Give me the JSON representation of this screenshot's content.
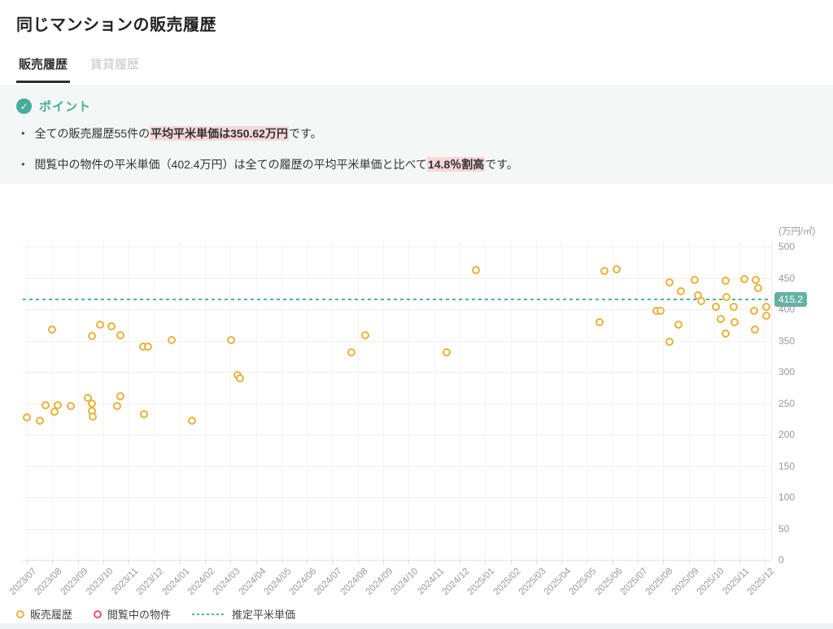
{
  "page": {
    "title": "同じマンションの販売履歴"
  },
  "tabs": [
    {
      "label": "販売履歴",
      "active": true
    },
    {
      "label": "賃貸履歴",
      "active": false
    }
  ],
  "point_section": {
    "heading": "ポイント",
    "check_icon": "check-circle",
    "bullets": [
      {
        "pre": "全ての販売履歴55件の",
        "highlight": "平均平米単価は350.62万円",
        "post": "です。"
      },
      {
        "pre": "閲覧中の物件の平米単価（402.4万円）は全ての履歴の平均平米単価と比べて",
        "highlight": "14.8％割高",
        "post": "です。"
      }
    ]
  },
  "chart_data": {
    "type": "scatter",
    "title": "",
    "unit_label": "(万円/㎡)",
    "ylim": [
      0,
      500
    ],
    "y_ticks": [
      500,
      450,
      400,
      350,
      300,
      250,
      200,
      150,
      100,
      50,
      0
    ],
    "grid": true,
    "legend_position": "bottom-left",
    "x_labels": [
      "2023/07",
      "2023/08",
      "2023/09",
      "2023/10",
      "2023/11",
      "2023/12",
      "2024/01",
      "2024/02",
      "2024/03",
      "2024/04",
      "2024/05",
      "2024/06",
      "2024/07",
      "2024/08",
      "2024/09",
      "2024/10",
      "2024/11",
      "2024/12",
      "2025/01",
      "2025/02",
      "2025/03",
      "2025/04",
      "2025/05",
      "2025/06",
      "2025/07",
      "2025/08",
      "2025/09",
      "2025/10",
      "2025/11",
      "2025/12"
    ],
    "average_line": {
      "value": 415.2,
      "label": "415.2",
      "color": "#4FB0A8"
    },
    "series": [
      {
        "name": "販売履歴",
        "color": "#E7B23C",
        "count": 55,
        "points": [
          [
            0.0,
            227
          ],
          [
            0.5,
            222
          ],
          [
            0.74,
            247
          ],
          [
            0.99,
            368
          ],
          [
            1.09,
            236
          ],
          [
            1.21,
            247
          ],
          [
            1.73,
            245
          ],
          [
            2.4,
            258
          ],
          [
            2.56,
            357
          ],
          [
            2.56,
            249
          ],
          [
            2.56,
            238
          ],
          [
            2.59,
            229
          ],
          [
            2.88,
            375
          ],
          [
            3.32,
            373
          ],
          [
            3.55,
            245
          ],
          [
            3.68,
            261
          ],
          [
            3.68,
            358
          ],
          [
            4.57,
            340
          ],
          [
            4.6,
            232
          ],
          [
            4.76,
            340
          ],
          [
            5.69,
            351
          ],
          [
            6.49,
            222
          ],
          [
            8.02,
            351
          ],
          [
            8.28,
            295
          ],
          [
            8.37,
            290
          ],
          [
            12.75,
            331
          ],
          [
            13.3,
            358
          ],
          [
            16.49,
            331
          ],
          [
            17.64,
            462
          ],
          [
            22.5,
            379
          ],
          [
            22.69,
            461
          ],
          [
            23.17,
            464
          ],
          [
            24.74,
            397
          ],
          [
            24.9,
            397
          ],
          [
            25.25,
            443
          ],
          [
            25.25,
            348
          ],
          [
            25.6,
            375
          ],
          [
            25.7,
            429
          ],
          [
            26.24,
            447
          ],
          [
            26.37,
            422
          ],
          [
            26.5,
            413
          ],
          [
            27.07,
            404
          ],
          [
            27.26,
            384
          ],
          [
            27.45,
            445
          ],
          [
            27.45,
            361
          ],
          [
            27.49,
            419
          ],
          [
            27.77,
            404
          ],
          [
            27.8,
            379
          ],
          [
            28.19,
            448
          ],
          [
            28.57,
            397
          ],
          [
            28.6,
            368
          ],
          [
            28.63,
            447
          ],
          [
            28.73,
            434
          ],
          [
            29.05,
            404
          ],
          [
            29.05,
            390
          ]
        ]
      },
      {
        "name": "閲覧中の物件",
        "color": "#E4526E",
        "points": []
      }
    ],
    "legend": [
      {
        "label": "販売履歴",
        "marker": "circle",
        "color": "#E7B23C"
      },
      {
        "label": "閲覧中の物件",
        "marker": "circle",
        "color": "#E4526E"
      },
      {
        "label": "推定平米単価",
        "marker": "dashed-line",
        "color": "#4FB0A8"
      }
    ]
  },
  "colors": {
    "accent_teal": "#47AC9A",
    "badge_teal": "#65B2A4",
    "highlight_pink": "#F8D7D9",
    "series_yellow": "#E7B23C",
    "series_red": "#E4526E",
    "section_bg": "#F3F7F6",
    "axis_text": "#999999"
  }
}
